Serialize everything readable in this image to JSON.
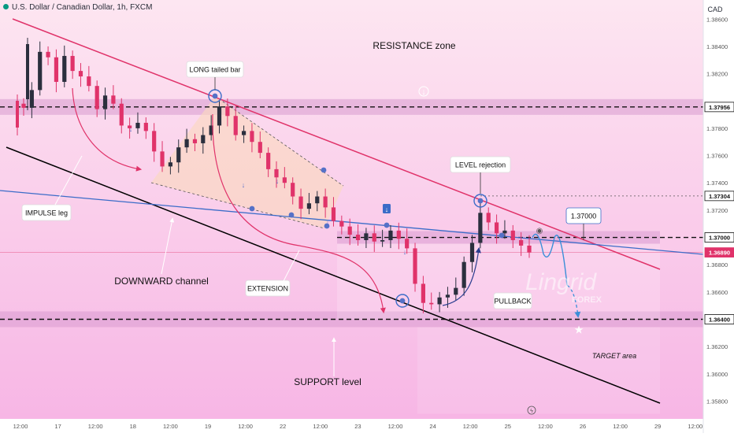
{
  "header": {
    "symbol_title": "U.S. Dollar / Canadian Dollar, 1h, FXCM",
    "currency": "CAD"
  },
  "colors": {
    "background_top": "#fde6f1",
    "background_bottom": "#f7b6e5",
    "resistance_line": "#e0336a",
    "support_channel_line": "#000000",
    "trend_line": "#3b6cc8",
    "candle_up": "#2b2f3e",
    "candle_down": "#e0336a",
    "current_price_tag": "#e0336a",
    "zone_band": "#d89ad0",
    "triangle_fill": "#fad8c0",
    "annotation_circle": "#3b6cc8",
    "arrow_path": "#e0336a",
    "projection_path": "#3a8fd8"
  },
  "annotations": {
    "resistance_zone": "RESISTANCE zone",
    "long_tailed_bar": "LONG tailed bar",
    "impulse_leg": "IMPULSE leg",
    "downward_channel": "DOWNWARD channel",
    "extension": "EXTENSION",
    "support_level": "SUPPORT level",
    "level_rejection": "LEVEL rejection",
    "pullback": "PULLBACK",
    "target_area": "TARGET area",
    "level_callout": "1.37000",
    "watermark_main": "Lingrid",
    "watermark_sub": "FOREX"
  },
  "chart_data": {
    "type": "candlestick",
    "title": "U.S. Dollar / Canadian Dollar, 1h, FXCM",
    "ylabel": "CAD",
    "ylim": [
      1.3567,
      1.3874
    ],
    "y_ticks": [
      1.358,
      1.36,
      1.362,
      1.366,
      1.368,
      1.372,
      1.374,
      1.376,
      1.378,
      1.382,
      1.384,
      1.386
    ],
    "y_tick_labels": [
      "1.35800",
      "1.36000",
      "1.36200",
      "1.36600",
      "1.36800",
      "1.37200",
      "1.37400",
      "1.37600",
      "1.37800",
      "1.38200",
      "1.38400",
      "1.38600"
    ],
    "price_labels": [
      {
        "value": 1.37956,
        "label": "1.37956",
        "style": "level"
      },
      {
        "value": 1.37304,
        "label": "1.37304",
        "style": "level"
      },
      {
        "value": 1.37,
        "label": "1.37000",
        "style": "level"
      },
      {
        "value": 1.3689,
        "label": "1.36890",
        "style": "current"
      },
      {
        "value": 1.364,
        "label": "1.36400",
        "style": "level"
      }
    ],
    "x_labels": [
      "12:00",
      "17",
      "12:00",
      "18",
      "12:00",
      "19",
      "12:00",
      "22",
      "12:00",
      "23",
      "12:00",
      "24",
      "12:00",
      "25",
      "12:00",
      "26",
      "12:00",
      "29",
      "12:00"
    ],
    "levels": {
      "resistance": 1.37956,
      "rejection_high": 1.37304,
      "pivot": 1.37,
      "support": 1.364
    },
    "close": [
      1.3795,
      1.3808,
      1.3836,
      1.3832,
      1.3814,
      1.3833,
      1.3822,
      1.3818,
      1.3811,
      1.3794,
      1.3804,
      1.3798,
      1.3782,
      1.378,
      1.3784,
      1.3778,
      1.3763,
      1.3752,
      1.3755,
      1.3766,
      1.3772,
      1.3769,
      1.3775,
      1.3782,
      1.3796,
      1.3789,
      1.3775,
      1.3778,
      1.377,
      1.3762,
      1.375,
      1.3744,
      1.374,
      1.373,
      1.3721,
      1.3725,
      1.373,
      1.3722,
      1.3712,
      1.3708,
      1.3702,
      1.3698,
      1.3703,
      1.3697,
      1.3698,
      1.3705,
      1.3699,
      1.3692,
      1.3666,
      1.3652,
      1.3651,
      1.3656,
      1.3658,
      1.3663,
      1.3682,
      1.3696,
      1.3718,
      1.3711,
      1.3703,
      1.3705,
      1.3698,
      1.3694,
      1.3689
    ],
    "projection": [
      1.37,
      1.3688,
      1.37,
      1.3665,
      1.364
    ],
    "target_point": 1.3632,
    "series": [
      {
        "name": "IMPULSE leg"
      },
      {
        "name": "EXTENSION"
      },
      {
        "name": "PULLBACK"
      }
    ]
  }
}
